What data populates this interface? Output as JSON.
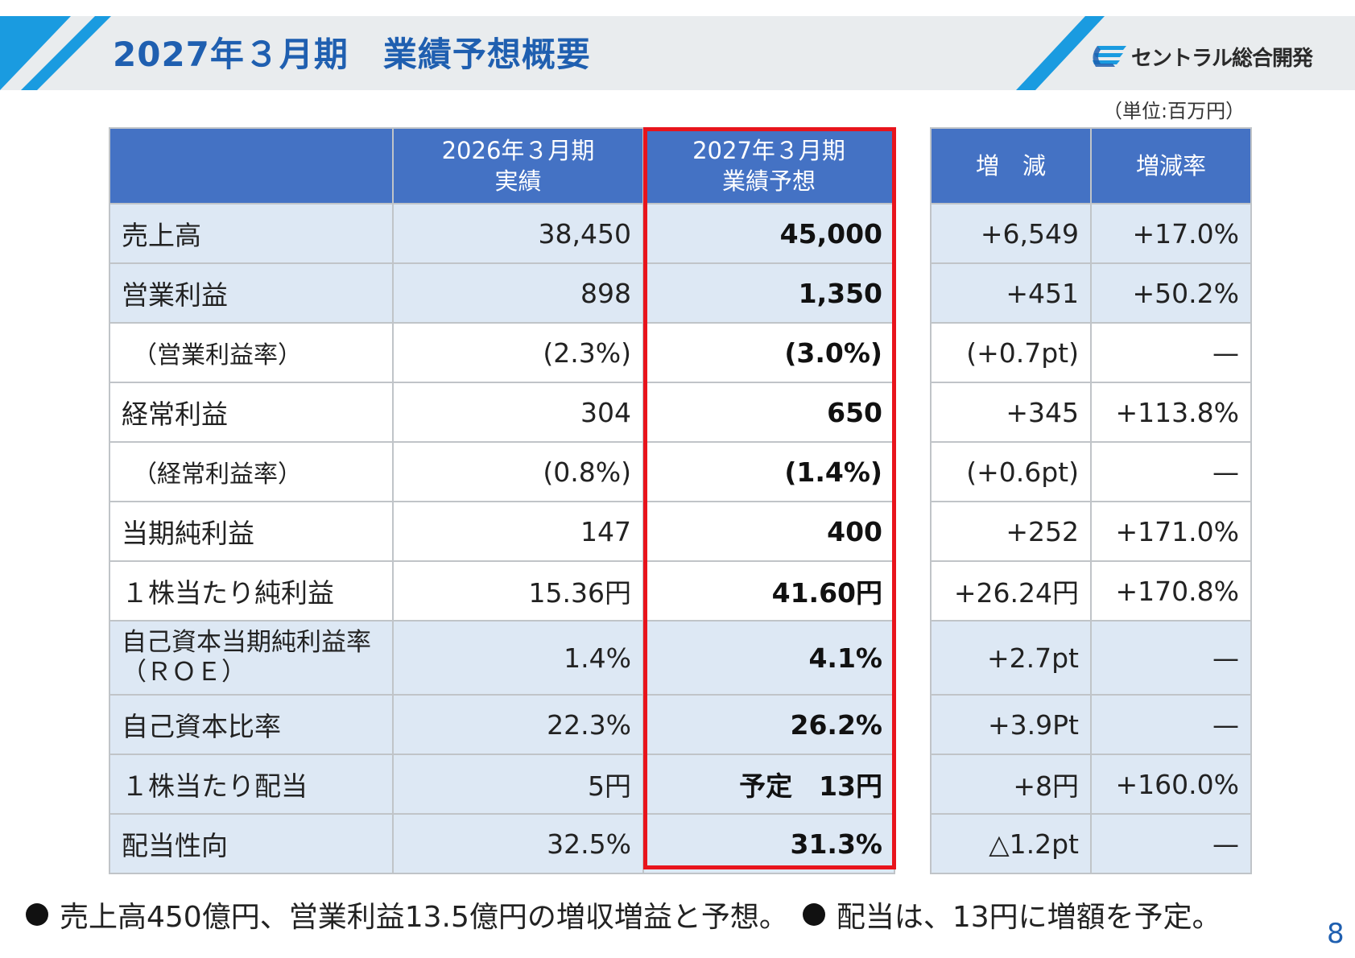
{
  "header": {
    "title": "2027年３月期　業績予想概要",
    "company": "セントラル総合開発",
    "unit": "（単位:百万円）"
  },
  "table": {
    "headers": {
      "item": "",
      "prev_line1": "2026年３月期",
      "prev_line2": "実績",
      "fcst_line1": "2027年３月期",
      "fcst_line2": "業績予想",
      "diff": "増　減",
      "rate": "増減率"
    },
    "rows": [
      {
        "label": "売上高",
        "label2": "",
        "prev": "38,450",
        "fcst": "45,000",
        "diff": "+6,549",
        "rate": "+17.0%"
      },
      {
        "label": "営業利益",
        "label2": "",
        "prev": "898",
        "fcst": "1,350",
        "diff": "+451",
        "rate": "+50.2%"
      },
      {
        "label": "（営業利益率）",
        "label2": "",
        "prev": "(2.3%)",
        "fcst": "(3.0%)",
        "diff": "(+0.7pt)",
        "rate": "—"
      },
      {
        "label": "経常利益",
        "label2": "",
        "prev": "304",
        "fcst": "650",
        "diff": "+345",
        "rate": "+113.8%"
      },
      {
        "label": "（経常利益率）",
        "label2": "",
        "prev": "(0.8%)",
        "fcst": "(1.4%)",
        "diff": "(+0.6pt)",
        "rate": "—"
      },
      {
        "label": "当期純利益",
        "label2": "",
        "prev": "147",
        "fcst": "400",
        "diff": "+252",
        "rate": "+171.0%"
      },
      {
        "label": "１株当たり純利益",
        "label2": "",
        "prev": "15.36円",
        "fcst": "41.60円",
        "diff": "+26.24円",
        "rate": "+170.8%"
      },
      {
        "label": "自己資本当期純利益率",
        "label2": "（ＲＯＥ）",
        "prev": "1.4%",
        "fcst": "4.1%",
        "diff": "+2.7pt",
        "rate": "—"
      },
      {
        "label": "自己資本比率",
        "label2": "",
        "prev": "22.3%",
        "fcst": "26.2%",
        "diff": "+3.9Pt",
        "rate": "—"
      },
      {
        "label": "１株当たり配当",
        "label2": "",
        "prev": "5円",
        "fcst": "予定　13円",
        "diff": "+8円",
        "rate": "+160.0%"
      },
      {
        "label": "配当性向",
        "label2": "",
        "prev": "32.5%",
        "fcst": "31.3%",
        "diff": "△1.2pt",
        "rate": "—"
      }
    ]
  },
  "footnote": {
    "note1": "売上高450億円、営業利益13.5億円の増収増益と予想。",
    "note2": "配当は、13円に増額を予定。"
  },
  "page_number": "8",
  "colors": {
    "title": "#1f5fb0",
    "header_fill": "#4472c4",
    "row_blue": "#dde8f4",
    "highlight_border": "#e8141c",
    "stripe": "#1a9be0"
  }
}
